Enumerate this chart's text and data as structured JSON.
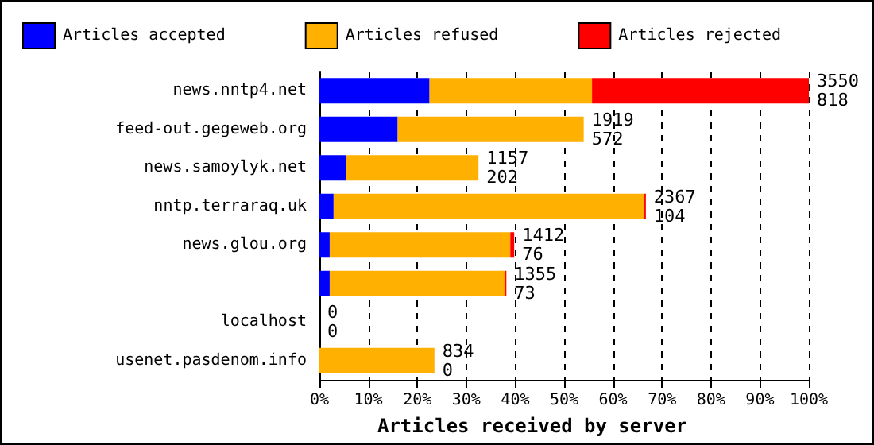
{
  "chart_data": {
    "type": "bar",
    "orientation": "horizontal",
    "stacked": true,
    "xlabel": "Articles received by server",
    "categories": [
      "news.nntp4.net",
      "feed-out.gegeweb.org",
      "news.samoylyk.net",
      "nntp.terraraq.uk",
      "news.glou.org",
      null,
      "localhost",
      "usenet.pasdenom.info"
    ],
    "series": [
      {
        "name": "Articles accepted",
        "color": "#0000ff",
        "values": [
          22.5,
          16,
          5.5,
          2.9,
          2.1,
          2.1,
          0,
          null
        ]
      },
      {
        "name": "Articles refused",
        "color": "#ffb000",
        "values": [
          33.2,
          38,
          27,
          63.5,
          36.9,
          35.8,
          0,
          23.5
        ]
      },
      {
        "name": "Articles rejected",
        "color": "#ff0000",
        "values": [
          44.3,
          null,
          null,
          0.3,
          0.8,
          0.3,
          0,
          null
        ]
      }
    ],
    "annotations": [
      "3550\n818",
      "1919\n572",
      "1157\n202",
      "2367\n104",
      "1412\n76",
      "1355\n73",
      "0\n0",
      "834\n0"
    ],
    "xlim": [
      0,
      100
    ],
    "xticks": [
      {
        "value": 0,
        "label": "0%"
      },
      {
        "value": 10,
        "label": "10%"
      },
      {
        "value": 20,
        "label": "20%"
      },
      {
        "value": 30,
        "label": "30%"
      },
      {
        "value": 40,
        "label": "40%"
      },
      {
        "value": 50,
        "label": "50%"
      },
      {
        "value": 60,
        "label": "60%"
      },
      {
        "value": 70,
        "label": "70%"
      },
      {
        "value": 80,
        "label": "80%"
      },
      {
        "value": 90,
        "label": "90%"
      },
      {
        "value": 100,
        "label": "100%"
      }
    ],
    "grid": "x",
    "legend": "top"
  }
}
